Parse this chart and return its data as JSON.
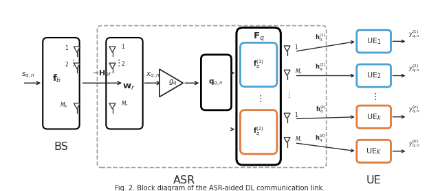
{
  "title": "Fig. 2. Block diagram of the ASR-aided DL communication link.",
  "bg_color": "#ffffff",
  "blue_color": "#4a9fd4",
  "orange_color": "#e07b39",
  "black_color": "#2a2a2a",
  "dashed_color": "#999999",
  "fs_base": 8.5
}
